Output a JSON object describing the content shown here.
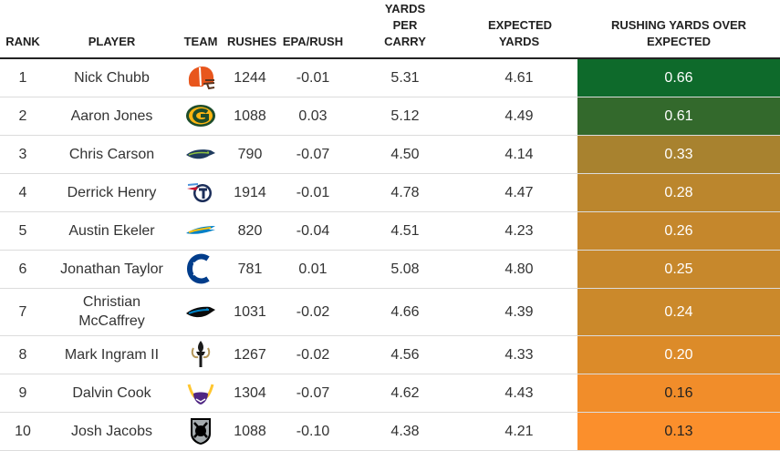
{
  "chart_data": {
    "type": "table",
    "columns": [
      "RANK",
      "PLAYER",
      "TEAM",
      "RUSHES",
      "EPA/RUSH",
      "YARDS PER CARRY",
      "EXPECTED YARDS",
      "RUSHING YARDS OVER EXPECTED"
    ],
    "rows": [
      {
        "rank": "1",
        "player": "Nick Chubb",
        "team_icon": "browns-helmet-icon",
        "rushes": "1244",
        "epa": "-0.01",
        "ypc": "5.31",
        "exp": "4.61",
        "ryoe": "0.66",
        "color": "#0e6a2b"
      },
      {
        "rank": "2",
        "player": "Aaron Jones",
        "team_icon": "packers-logo-icon",
        "rushes": "1088",
        "epa": "0.03",
        "ypc": "5.12",
        "exp": "4.49",
        "ryoe": "0.61",
        "color": "#33692c"
      },
      {
        "rank": "3",
        "player": "Chris Carson",
        "team_icon": "seahawks-logo-icon",
        "rushes": "790",
        "epa": "-0.07",
        "ypc": "4.50",
        "exp": "4.14",
        "ryoe": "0.33",
        "color": "#a8822f"
      },
      {
        "rank": "4",
        "player": "Derrick Henry",
        "team_icon": "titans-logo-icon",
        "rushes": "1914",
        "epa": "-0.01",
        "ypc": "4.78",
        "exp": "4.47",
        "ryoe": "0.28",
        "color": "#bb862d"
      },
      {
        "rank": "5",
        "player": "Austin Ekeler",
        "team_icon": "chargers-logo-icon",
        "rushes": "820",
        "epa": "-0.04",
        "ypc": "4.51",
        "exp": "4.23",
        "ryoe": "0.26",
        "color": "#c5872c"
      },
      {
        "rank": "6",
        "player": "Jonathan Taylor",
        "team_icon": "colts-logo-icon",
        "rushes": "781",
        "epa": "0.01",
        "ypc": "5.08",
        "exp": "4.80",
        "ryoe": "0.25",
        "color": "#c7882c"
      },
      {
        "rank": "7",
        "player": "Christian McCaffrey",
        "team_icon": "panthers-logo-icon",
        "rushes": "1031",
        "epa": "-0.02",
        "ypc": "4.66",
        "exp": "4.39",
        "ryoe": "0.24",
        "color": "#cb892b"
      },
      {
        "rank": "8",
        "player": "Mark Ingram II",
        "team_icon": "saints-logo-icon",
        "rushes": "1267",
        "epa": "-0.02",
        "ypc": "4.56",
        "exp": "4.33",
        "ryoe": "0.20",
        "color": "#dc8b29"
      },
      {
        "rank": "9",
        "player": "Dalvin Cook",
        "team_icon": "vikings-logo-icon",
        "rushes": "1304",
        "epa": "-0.07",
        "ypc": "4.62",
        "exp": "4.43",
        "ryoe": "0.16",
        "color": "#f18d2a"
      },
      {
        "rank": "10",
        "player": "Josh Jacobs",
        "team_icon": "raiders-logo-icon",
        "rushes": "1088",
        "epa": "-0.10",
        "ypc": "4.38",
        "exp": "4.21",
        "ryoe": "0.13",
        "color": "#fb8f2c"
      }
    ]
  }
}
